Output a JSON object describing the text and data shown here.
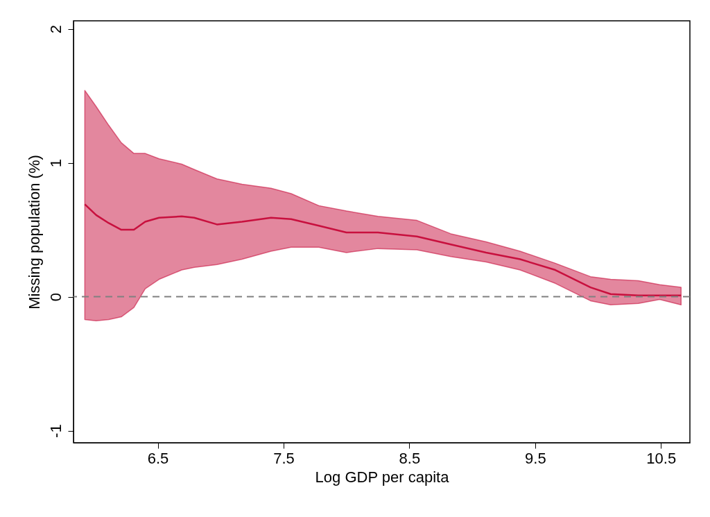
{
  "chart_data": {
    "type": "line",
    "xlabel": "Log GDP per capita",
    "ylabel": "Missing population (%)",
    "x": [
      5.92,
      6.01,
      6.11,
      6.21,
      6.31,
      6.4,
      6.51,
      6.69,
      6.79,
      6.97,
      7.17,
      7.4,
      7.56,
      7.78,
      8.0,
      8.25,
      8.56,
      8.83,
      9.11,
      9.38,
      9.66,
      9.94,
      10.1,
      10.32,
      10.49,
      10.66
    ],
    "series": [
      {
        "color": "#c8103e",
        "values": [
          0.69,
          0.61,
          0.55,
          0.5,
          0.5,
          0.56,
          0.59,
          0.6,
          0.59,
          0.54,
          0.56,
          0.59,
          0.58,
          0.53,
          0.48,
          0.48,
          0.45,
          0.39,
          0.33,
          0.28,
          0.2,
          0.07,
          0.02,
          0.01,
          0.01,
          0.01
        ],
        "lower": [
          -0.17,
          -0.18,
          -0.17,
          -0.15,
          -0.08,
          0.06,
          0.13,
          0.2,
          0.22,
          0.24,
          0.28,
          0.34,
          0.37,
          0.37,
          0.33,
          0.36,
          0.35,
          0.3,
          0.26,
          0.2,
          0.1,
          -0.03,
          -0.06,
          -0.05,
          -0.02,
          -0.06
        ],
        "upper": [
          1.54,
          1.42,
          1.28,
          1.15,
          1.07,
          1.07,
          1.03,
          0.99,
          0.95,
          0.88,
          0.84,
          0.81,
          0.77,
          0.68,
          0.64,
          0.6,
          0.57,
          0.47,
          0.41,
          0.34,
          0.25,
          0.15,
          0.13,
          0.12,
          0.09,
          0.07
        ]
      }
    ],
    "xlim": [
      5.83,
      10.73
    ],
    "xticks": [
      6.5,
      7.5,
      8.5,
      9.5,
      10.5
    ],
    "ylim": [
      -1.09,
      2.06
    ],
    "yticks": [
      -1,
      0,
      1,
      2
    ],
    "ref_lines": [
      {
        "axis": "y",
        "value": 0,
        "color": "#808080",
        "line_style": "dashed"
      }
    ],
    "grid": false,
    "marker": "none",
    "line_style": "solid"
  }
}
